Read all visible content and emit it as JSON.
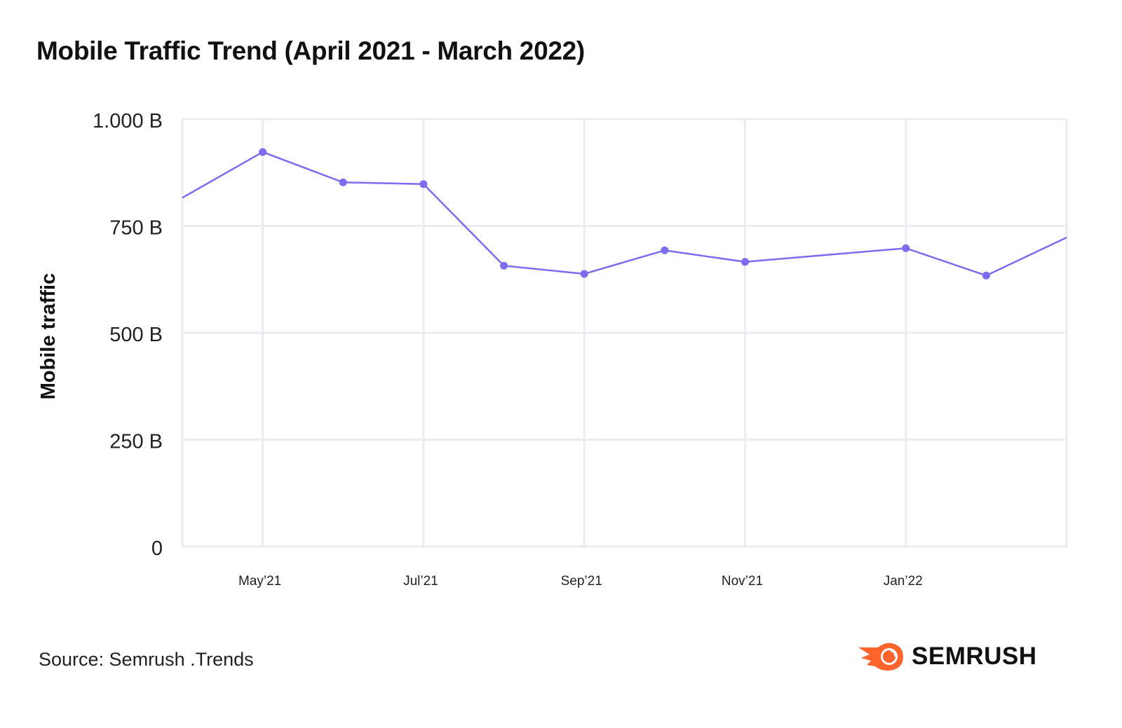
{
  "chart_data": {
    "type": "line",
    "title": "Mobile Traffic Trend (April 2021 - March 2022)",
    "ylabel": "Mobile traffic",
    "xlabel": "",
    "ylim": [
      0,
      1000
    ],
    "y_unit": "B",
    "y_ticks": [
      {
        "value": 0,
        "label": "0"
      },
      {
        "value": 250,
        "label": "250 B"
      },
      {
        "value": 500,
        "label": "500 B"
      },
      {
        "value": 750,
        "label": "750 B"
      },
      {
        "value": 1000,
        "label": "1.000 B"
      }
    ],
    "x_categories": [
      "Apr'21",
      "May'21",
      "Jun'21",
      "Jul'21",
      "Aug'21",
      "Sep'21",
      "Oct'21",
      "Nov'21",
      "Dec'21",
      "Jan'22",
      "Feb'22",
      "Mar'22"
    ],
    "x_tick_labels": [
      {
        "category": "May'21",
        "label": "May’21"
      },
      {
        "category": "Jul'21",
        "label": "Jul’21"
      },
      {
        "category": "Sep'21",
        "label": "Sep’21"
      },
      {
        "category": "Nov'21",
        "label": "Nov’21"
      },
      {
        "category": "Jan'22",
        "label": "Jan’22"
      }
    ],
    "series": [
      {
        "color": "#7B6CF0",
        "points": [
          {
            "x": "Apr'21",
            "y": 816
          },
          {
            "x": "May'21",
            "y": 923
          },
          {
            "x": "Jun'21",
            "y": 852
          },
          {
            "x": "Jul'21",
            "y": 848
          },
          {
            "x": "Aug'21",
            "y": 657
          },
          {
            "x": "Sep'21",
            "y": 638
          },
          {
            "x": "Oct'21",
            "y": 693
          },
          {
            "x": "Nov'21",
            "y": 666
          },
          {
            "x": "Jan'22",
            "y": 698
          },
          {
            "x": "Feb'22",
            "y": 634
          },
          {
            "x": "Mar'22",
            "y": 723
          }
        ]
      }
    ],
    "grid": true,
    "grid_color": "#EBEBF2",
    "legend": "none"
  },
  "source": "Source: Semrush .Trends",
  "brand": {
    "name": "SEMRUSH",
    "color": "#FF642D",
    "icon": "semrush-fireball-icon"
  }
}
